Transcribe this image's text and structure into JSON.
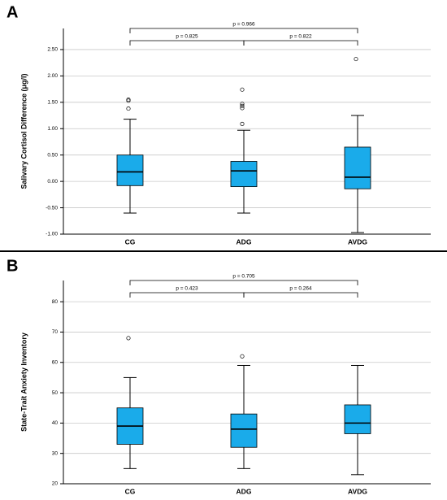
{
  "chart_data": [
    {
      "type": "box",
      "panel_label": "A",
      "ylabel": "Salivary Cortisol Difference (μg/l)",
      "categories": [
        "CG",
        "ADG",
        "AVDG"
      ],
      "color": "#1aabea",
      "boxes": [
        {
          "whisker_low": -0.6,
          "q1": -0.08,
          "median": 0.18,
          "q3": 0.5,
          "whisker_high": 1.18,
          "outliers": [
            1.55,
            1.53,
            1.38
          ]
        },
        {
          "whisker_low": -0.6,
          "q1": -0.1,
          "median": 0.2,
          "q3": 0.38,
          "whisker_high": 0.97,
          "outliers": [
            1.74,
            1.47,
            1.43,
            1.39,
            1.09
          ]
        },
        {
          "whisker_low": -0.97,
          "q1": -0.14,
          "median": 0.08,
          "q3": 0.65,
          "whisker_high": 1.25,
          "outliers": [
            2.32
          ]
        }
      ],
      "annotations": [
        "p = 0.966",
        "p = 0.825",
        "p = 0.822"
      ],
      "ylim": [
        -1,
        2.9
      ],
      "yticks": [
        {
          "value": -1,
          "label": "-1.00"
        },
        {
          "value": -0.5,
          "label": "-0.50"
        },
        {
          "value": 0,
          "label": "0.00"
        },
        {
          "value": 0.5,
          "label": "0.50"
        },
        {
          "value": 1,
          "label": "1.00"
        },
        {
          "value": 1.5,
          "label": "1.50"
        },
        {
          "value": 2,
          "label": "2.00"
        },
        {
          "value": 2.5,
          "label": "2.50"
        }
      ],
      "grid": true
    },
    {
      "type": "box",
      "panel_label": "B",
      "ylabel": "State-Trait Anxiety Inventory",
      "categories": [
        "CG",
        "ADG",
        "AVDG"
      ],
      "color": "#1aabea",
      "boxes": [
        {
          "whisker_low": 25,
          "q1": 33,
          "median": 39,
          "q3": 45,
          "whisker_high": 55,
          "outliers": [
            68
          ]
        },
        {
          "whisker_low": 25,
          "q1": 32,
          "median": 38,
          "q3": 43,
          "whisker_high": 59,
          "outliers": [
            62
          ]
        },
        {
          "whisker_low": 23,
          "q1": 36.5,
          "median": 40,
          "q3": 46,
          "whisker_high": 59,
          "outliers": []
        }
      ],
      "annotations": [
        "p = 0.705",
        "p = 0.423",
        "p = 0.264"
      ],
      "ylim": [
        20,
        87
      ],
      "yticks": [
        20,
        30,
        40,
        50,
        60,
        70,
        80
      ],
      "grid": true
    }
  ]
}
